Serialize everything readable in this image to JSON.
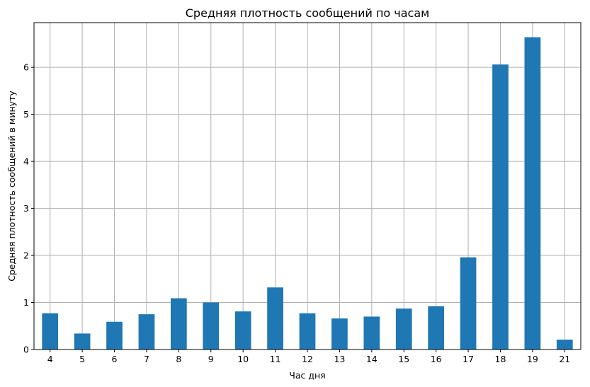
{
  "chart_data": {
    "type": "bar",
    "title": "Средняя плотность сообщений по часам",
    "xlabel": "Час дня",
    "ylabel": "Средняя плотность сообщений в минуту",
    "categories": [
      "4",
      "5",
      "6",
      "7",
      "8",
      "9",
      "10",
      "11",
      "12",
      "13",
      "14",
      "15",
      "16",
      "17",
      "18",
      "19",
      "21"
    ],
    "values": [
      0.77,
      0.34,
      0.59,
      0.75,
      1.09,
      1.0,
      0.81,
      1.32,
      0.77,
      0.66,
      0.7,
      0.87,
      0.92,
      1.96,
      6.06,
      6.64,
      0.21
    ],
    "ylim": [
      0,
      6.95
    ],
    "yticks": [
      0,
      1,
      2,
      3,
      4,
      5,
      6
    ],
    "grid": true,
    "bar_color": "#1f77b4",
    "grid_color": "#b0b0b0"
  }
}
